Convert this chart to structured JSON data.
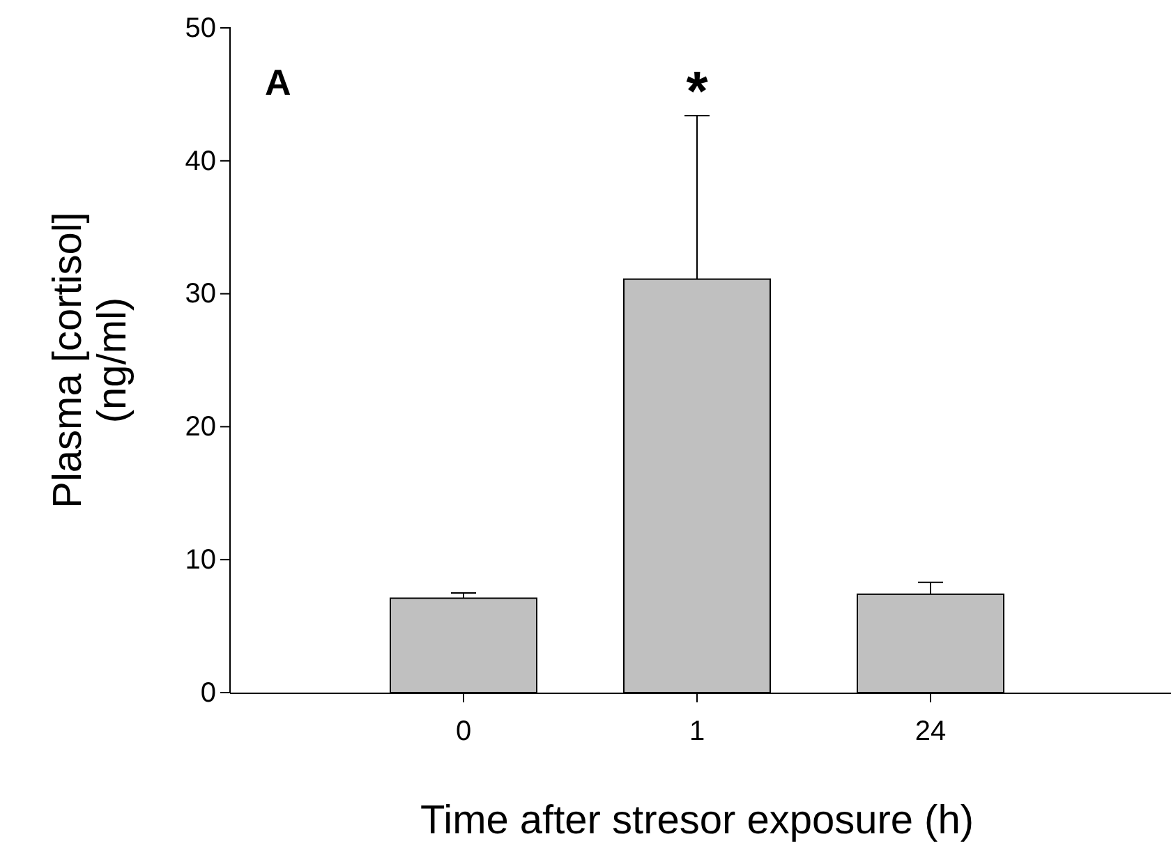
{
  "chart_data": {
    "type": "bar",
    "xlabel": "Time after stresor exposure (h)",
    "ylabel": "Plasma [cortisol]\n(ng/ml)",
    "categories": [
      "0",
      "1",
      "24"
    ],
    "values": [
      7.1,
      31.1,
      7.4
    ],
    "errors": [
      0.4,
      12.3,
      0.9
    ],
    "color": "#c0c0c0",
    "ylim": [
      0,
      50
    ],
    "yticks": [
      0,
      10,
      20,
      30,
      40,
      50
    ],
    "grid": false,
    "annotations": [
      "A",
      {
        "text": "*",
        "x": "1",
        "y": 43.4
      }
    ]
  }
}
